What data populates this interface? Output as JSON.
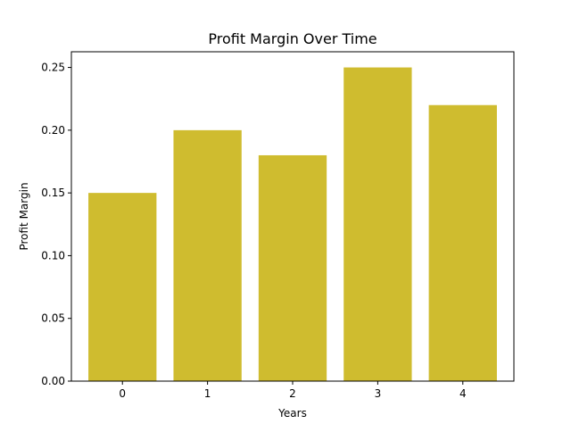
{
  "chart_data": {
    "type": "bar",
    "title": "Profit Margin Over Time",
    "xlabel": "Years",
    "ylabel": "Profit Margin",
    "categories": [
      "0",
      "1",
      "2",
      "3",
      "4"
    ],
    "values": [
      0.15,
      0.2,
      0.18,
      0.25,
      0.22
    ],
    "ylim": [
      0,
      0.2625
    ],
    "xlim": [
      -0.6,
      4.6
    ],
    "yticks": [
      0.0,
      0.05,
      0.1,
      0.15,
      0.2,
      0.25
    ],
    "ytick_labels": [
      "0.00",
      "0.05",
      "0.10",
      "0.15",
      "0.20",
      "0.25"
    ],
    "bar_color": "#cfbc2f",
    "grid": false,
    "legend": "none"
  }
}
